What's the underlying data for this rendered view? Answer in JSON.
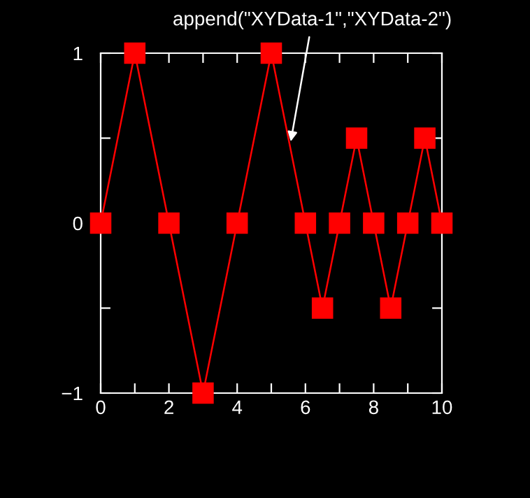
{
  "chart_data": {
    "type": "line",
    "x": [
      0,
      1,
      2,
      3,
      4,
      5,
      6,
      6.5,
      7,
      7.5,
      8,
      8.5,
      9,
      9.5,
      10
    ],
    "series": [
      {
        "color": "#ff0000",
        "values": [
          0,
          1,
          0,
          -1,
          0,
          1,
          0,
          -0.5,
          0,
          0.5,
          0,
          -0.5,
          0,
          0.5,
          0
        ]
      }
    ],
    "marker": "square",
    "line_style": "solid",
    "xlim": [
      0,
      10
    ],
    "ylim": [
      -1,
      1
    ],
    "xticks": [
      0,
      {
        "value": 1,
        "label": null
      },
      2,
      {
        "value": 3,
        "label": null
      },
      4,
      {
        "value": 5,
        "label": null
      },
      6,
      {
        "value": 7,
        "label": null
      },
      8,
      {
        "value": 9,
        "label": null
      },
      10
    ],
    "yticks": [
      {
        "value": -1,
        "label": "−1"
      },
      {
        "value": -0.5,
        "label": null
      },
      0,
      {
        "value": 0.5,
        "label": null
      },
      1
    ],
    "annotations": [
      {
        "text": "append(\"XYData-1\",\"XYData-2\")",
        "x": 5.57,
        "y": 0.48
      }
    ],
    "grid": false,
    "legend": false
  }
}
